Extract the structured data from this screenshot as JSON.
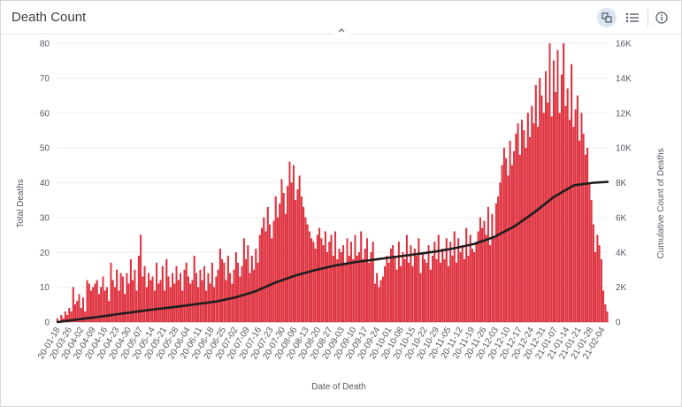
{
  "header": {
    "title": "Death Count",
    "tools": [
      {
        "name": "chart-type-icon"
      },
      {
        "name": "legend-list-icon"
      },
      {
        "name": "info-icon"
      }
    ]
  },
  "colors": {
    "bar": "#e8303f",
    "bar_stroke": "#c2141f",
    "line": "#1e1e1e",
    "grid": "#eceef1"
  },
  "chart_data": {
    "type": "bar",
    "title": "",
    "xlabel": "Date of Death",
    "ylabel": "Total Deaths",
    "y2label": "Cumulative Count of Deaths",
    "ylim": [
      0,
      80
    ],
    "y2lim": [
      0,
      16000
    ],
    "yticks": [
      "0",
      "10",
      "20",
      "30",
      "40",
      "50",
      "60",
      "70",
      "80"
    ],
    "y2ticks": [
      "0",
      "2K",
      "4K",
      "6K",
      "8K",
      "10K",
      "12K",
      "14K",
      "16K"
    ],
    "xticks": [
      "20-01-18",
      "20-03-26",
      "20-04-02",
      "20-04-09",
      "20-04-16",
      "20-04-23",
      "20-04-30",
      "20-05-07",
      "20-05-14",
      "20-05-21",
      "20-05-28",
      "20-06-04",
      "20-06-11",
      "20-06-18",
      "20-06-25",
      "20-07-02",
      "20-07-09",
      "20-07-16",
      "20-07-23",
      "20-07-30",
      "20-08-06",
      "20-08-13",
      "20-08-20",
      "20-08-27",
      "20-09-03",
      "20-09-10",
      "20-09-17",
      "20-09-24",
      "20-10-01",
      "20-10-08",
      "20-10-15",
      "20-10-22",
      "20-10-29",
      "20-11-05",
      "20-11-12",
      "20-11-19",
      "20-11-26",
      "20-12-03",
      "20-12-10",
      "20-12-17",
      "20-12-24",
      "20-12-31",
      "21-01-07",
      "21-01-14",
      "21-01-21",
      "21-01-28",
      "21-02-04"
    ],
    "grid": true,
    "series": [
      {
        "name": "Total Deaths",
        "type": "bar",
        "values": [
          1,
          0,
          2,
          1,
          3,
          2,
          4,
          3,
          10,
          5,
          6,
          8,
          4,
          7,
          3,
          12,
          11,
          9,
          10,
          11,
          12,
          8,
          10,
          13,
          9,
          10,
          6,
          17,
          12,
          10,
          15,
          9,
          14,
          13,
          8,
          14,
          11,
          18,
          12,
          15,
          9,
          19,
          25,
          13,
          16,
          10,
          14,
          12,
          13,
          9,
          17,
          11,
          12,
          16,
          9,
          18,
          13,
          10,
          14,
          11,
          16,
          12,
          14,
          9,
          15,
          17,
          13,
          11,
          12,
          19,
          14,
          10,
          15,
          12,
          16,
          9,
          14,
          11,
          17,
          10,
          13,
          15,
          21,
          18,
          17,
          12,
          19,
          14,
          11,
          15,
          20,
          17,
          13,
          16,
          24,
          18,
          22,
          14,
          19,
          15,
          21,
          17,
          25,
          27,
          30,
          26,
          33,
          28,
          24,
          29,
          36,
          30,
          34,
          41,
          37,
          31,
          39,
          46,
          40,
          45,
          35,
          38,
          42,
          36,
          33,
          30,
          28,
          26,
          24,
          23,
          21,
          25,
          27,
          24,
          22,
          26,
          20,
          23,
          25,
          19,
          26,
          18,
          21,
          20,
          22,
          17,
          24,
          19,
          23,
          18,
          25,
          19,
          20,
          26,
          18,
          21,
          24,
          17,
          20,
          23,
          11,
          14,
          10,
          12,
          13,
          16,
          19,
          17,
          21,
          22,
          19,
          15,
          23,
          16,
          20,
          18,
          25,
          17,
          22,
          16,
          21,
          19,
          24,
          14,
          20,
          18,
          17,
          22,
          15,
          19,
          23,
          18,
          25,
          17,
          21,
          18,
          24,
          16,
          23,
          19,
          26,
          17,
          24,
          20,
          22,
          18,
          27,
          19,
          25,
          21,
          20,
          23,
          26,
          30,
          27,
          29,
          25,
          33,
          22,
          31,
          24,
          34,
          36,
          40,
          45,
          50,
          47,
          42,
          52,
          45,
          49,
          54,
          57,
          48,
          58,
          55,
          50,
          60,
          53,
          62,
          57,
          68,
          56,
          70,
          65,
          60,
          72,
          63,
          80,
          59,
          75,
          66,
          78,
          60,
          71,
          80,
          62,
          67,
          58,
          74,
          56,
          61,
          65,
          52,
          60,
          54,
          48,
          50,
          40,
          35,
          28,
          20,
          25,
          22,
          18,
          9,
          5,
          3
        ]
      },
      {
        "name": "Cumulative Count of Deaths",
        "type": "line",
        "x_index": [
          0,
          10,
          20,
          30,
          40,
          50,
          60,
          70,
          80,
          90,
          100,
          110,
          120,
          130,
          140,
          150,
          160,
          170,
          180,
          190,
          200,
          210,
          220,
          230,
          240,
          250,
          260,
          270,
          277
        ],
        "values": [
          0,
          150,
          290,
          450,
          600,
          750,
          880,
          1030,
          1180,
          1430,
          1780,
          2280,
          2680,
          2990,
          3250,
          3440,
          3590,
          3740,
          3890,
          4040,
          4240,
          4490,
          4890,
          5490,
          6290,
          7190,
          7850,
          8000,
          8050
        ]
      }
    ]
  }
}
